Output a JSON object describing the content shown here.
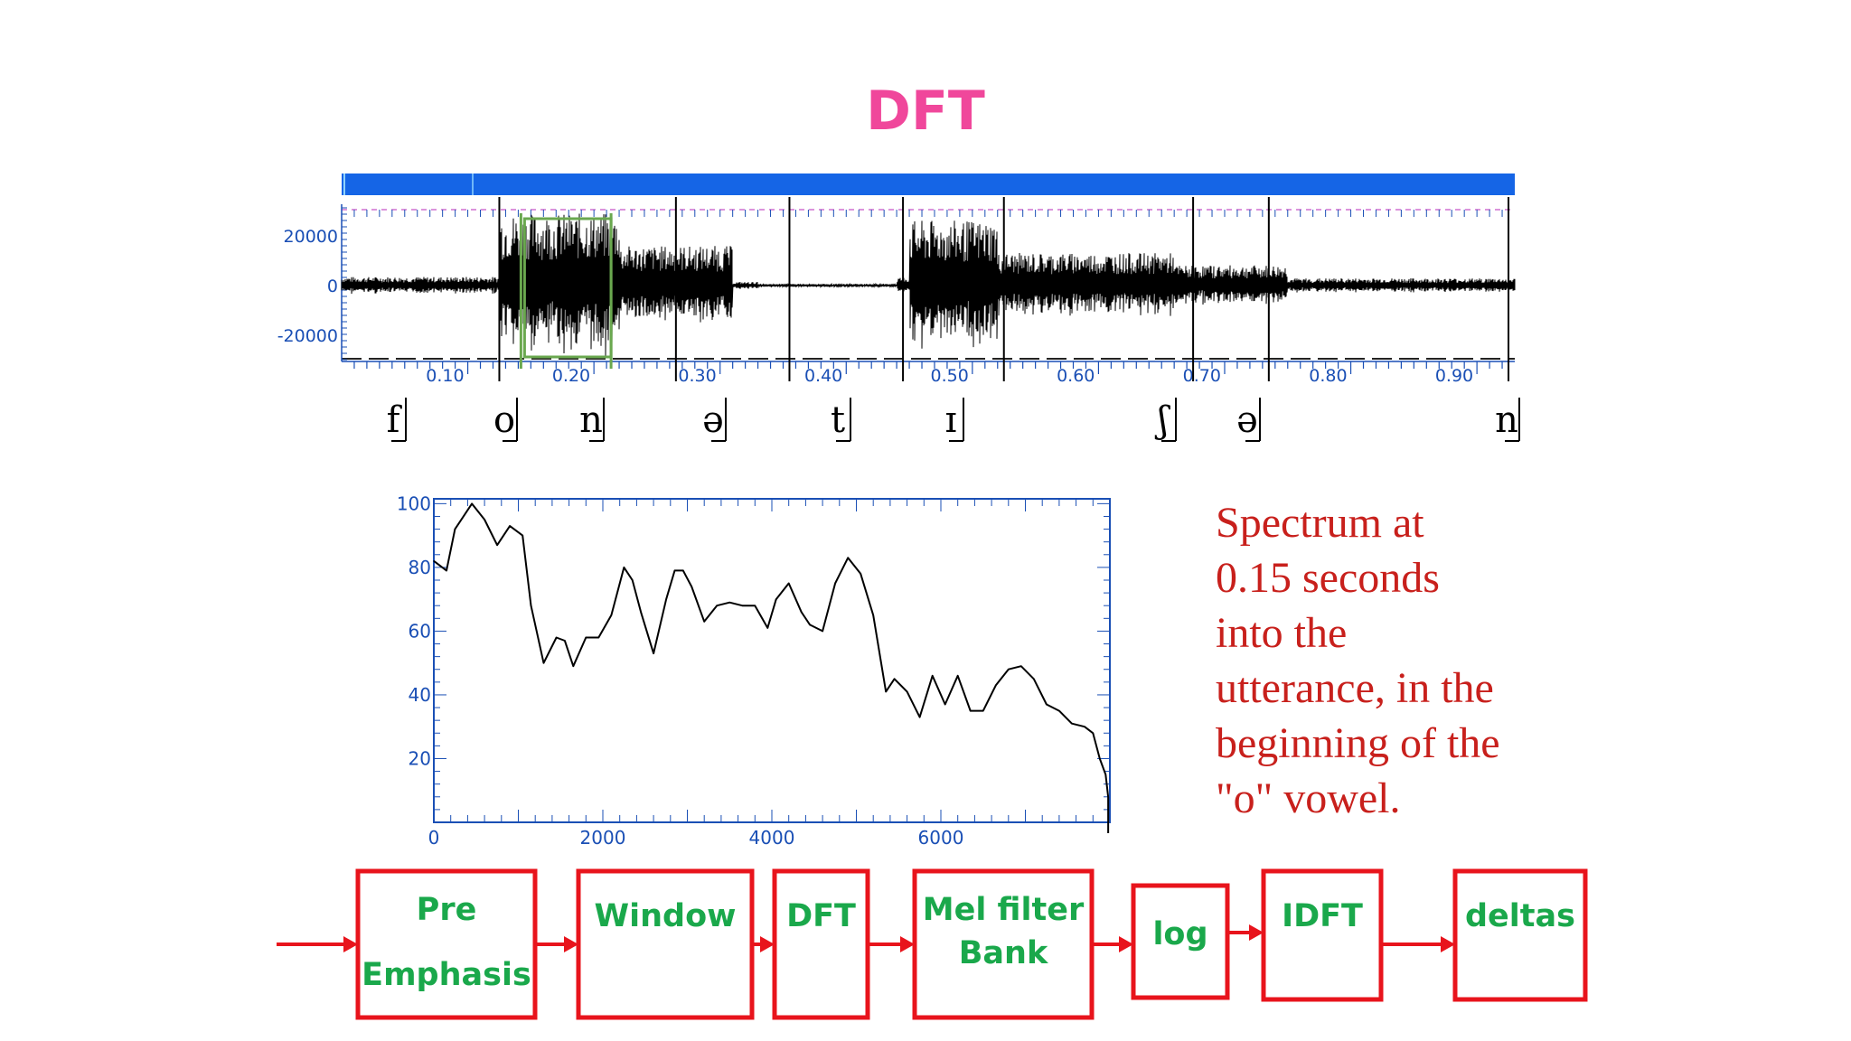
{
  "title": "DFT",
  "waveform": {
    "y_ticks": [
      "20000",
      "0",
      "-20000"
    ],
    "x_ticks": [
      "0.10",
      "0.20",
      "0.30",
      "0.40",
      "0.50",
      "0.60",
      "0.70",
      "0.80",
      "0.90"
    ],
    "phones": [
      "f",
      "o",
      "n",
      "ə",
      "t",
      "ɪ",
      "ʃ",
      "ə",
      "n"
    ],
    "x_range_seconds": [
      0.0,
      0.93
    ],
    "analysis_window_seconds": [
      0.14,
      0.21
    ]
  },
  "chart_data": {
    "type": "line",
    "title": "",
    "xlabel": "",
    "ylabel": "",
    "xlim": [
      0,
      8000
    ],
    "ylim": [
      0,
      100
    ],
    "x_ticks": [
      "0",
      "2000",
      "4000",
      "6000"
    ],
    "y_ticks": [
      "100",
      "80",
      "60",
      "40",
      "20"
    ],
    "grid": false,
    "series": [
      {
        "x": [
          0,
          150,
          250,
          450,
          600,
          750,
          900,
          1050,
          1150,
          1300,
          1450,
          1550,
          1650,
          1800,
          1950,
          2100,
          2250,
          2350,
          2450,
          2600,
          2750,
          2850,
          2950,
          3050,
          3200,
          3350,
          3500,
          3650,
          3800,
          3950,
          4050,
          4200,
          4350,
          4450,
          4600,
          4750,
          4900,
          5050,
          5200,
          5350,
          5450,
          5600,
          5750,
          5900,
          6050,
          6200,
          6350,
          6500,
          6650,
          6800,
          6950,
          7100,
          7250,
          7400,
          7550,
          7700,
          7800,
          7880,
          7950,
          7980
        ],
        "y": [
          82,
          79,
          92,
          100,
          95,
          87,
          93,
          90,
          68,
          50,
          58,
          57,
          49,
          58,
          58,
          65,
          80,
          76,
          66,
          53,
          70,
          79,
          79,
          74,
          63,
          68,
          69,
          68,
          68,
          61,
          70,
          75,
          66,
          62,
          60,
          75,
          83,
          78,
          65,
          41,
          45,
          41,
          33,
          46,
          37,
          46,
          35,
          35,
          43,
          48,
          49,
          45,
          37,
          35,
          31,
          30,
          28,
          20,
          15,
          8
        ]
      }
    ]
  },
  "caption": [
    "Spectrum at",
    "0.15 seconds",
    "into the",
    "utterance, in the",
    "beginning of the",
    "\"o\" vowel."
  ],
  "pipeline": [
    {
      "lines": [
        "Pre",
        "Emphasis"
      ]
    },
    {
      "lines": [
        "Window"
      ]
    },
    {
      "lines": [
        "DFT"
      ]
    },
    {
      "lines": [
        "Mel filter",
        "Bank"
      ]
    },
    {
      "lines": [
        "log"
      ]
    },
    {
      "lines": [
        "IDFT"
      ]
    },
    {
      "lines": [
        "deltas"
      ]
    }
  ],
  "colors": {
    "title": "#f0479b",
    "caption": "#c8201c",
    "block_border": "#e8141c",
    "block_text": "#1aa84b",
    "axis": "#1a4fb5",
    "window_box": "#6aa84f",
    "waveform_bar": "#1565e6"
  }
}
